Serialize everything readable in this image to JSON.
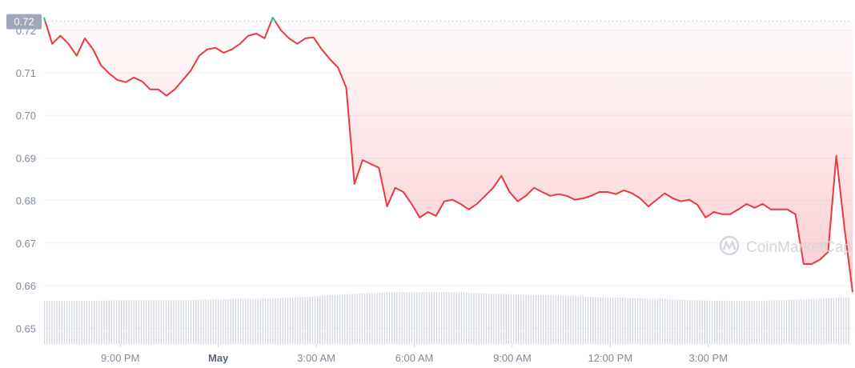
{
  "chart_data": {
    "type": "line",
    "title": "",
    "xlabel": "",
    "ylabel": "",
    "ylim": [
      0.6463,
      0.7271
    ],
    "grid": true,
    "y_ticks": [
      "0.72",
      "0.71",
      "0.70",
      "0.69",
      "0.68",
      "0.67",
      "0.66",
      "0.65"
    ],
    "x_ticks": [
      {
        "label": "9:00 PM",
        "time": "21:00",
        "bold": false
      },
      {
        "label": "May",
        "time": "24:00",
        "bold": true
      },
      {
        "label": "3:00 AM",
        "time": "27:00",
        "bold": false
      },
      {
        "label": "6:00 AM",
        "time": "30:00",
        "bold": false
      },
      {
        "label": "9:00 AM",
        "time": "33:00",
        "bold": false
      },
      {
        "label": "12:00 PM",
        "time": "36:00",
        "bold": false
      },
      {
        "label": "3:00 PM",
        "time": "39:00",
        "bold": false
      }
    ],
    "baseline": {
      "value": 0.7221,
      "label": "0.72"
    },
    "x_start": "18:40",
    "x_step_minutes": 15,
    "series": [
      {
        "values": [
          0.723,
          0.7168,
          0.7187,
          0.7168,
          0.714,
          0.7181,
          0.7155,
          0.7117,
          0.7098,
          0.7083,
          0.7078,
          0.7089,
          0.708,
          0.7061,
          0.7061,
          0.7046,
          0.7061,
          0.7083,
          0.7106,
          0.714,
          0.7155,
          0.7159,
          0.7147,
          0.7155,
          0.7168,
          0.7187,
          0.7192,
          0.7181,
          0.723,
          0.72,
          0.7181,
          0.7168,
          0.7181,
          0.7183,
          0.7155,
          0.7132,
          0.7112,
          0.7065,
          0.6839,
          0.6895,
          0.6886,
          0.6877,
          0.6786,
          0.683,
          0.682,
          0.6792,
          0.676,
          0.6773,
          0.6764,
          0.6798,
          0.6802,
          0.6792,
          0.6779,
          0.6792,
          0.6811,
          0.683,
          0.6858,
          0.682,
          0.6798,
          0.6811,
          0.683,
          0.682,
          0.6811,
          0.6815,
          0.6811,
          0.6802,
          0.6805,
          0.6811,
          0.682,
          0.682,
          0.6815,
          0.6824,
          0.6817,
          0.6805,
          0.6786,
          0.6802,
          0.6817,
          0.6805,
          0.6798,
          0.6802,
          0.679,
          0.676,
          0.6773,
          0.6768,
          0.6768,
          0.6779,
          0.6792,
          0.6783,
          0.6792,
          0.6779,
          0.6779,
          0.6779,
          0.6768,
          0.6651,
          0.6651,
          0.6661,
          0.6679,
          0.6905,
          0.6736,
          0.6585
        ]
      }
    ],
    "volume_relative": [
      0.6,
      0.6,
      0.61,
      0.61,
      0.62,
      0.63,
      0.66,
      0.7,
      0.72,
      0.72,
      0.7,
      0.68,
      0.66,
      0.64,
      0.62,
      0.6,
      0.6,
      0.62,
      0.65
    ],
    "colors": {
      "down": "#ea3943",
      "up": "#16c784",
      "volume": "#d2d6df",
      "grid": "#eff2f5",
      "axis_text": "#808a9d",
      "badge": "#a1a7bb"
    }
  },
  "watermark": "CoinMarketCap"
}
